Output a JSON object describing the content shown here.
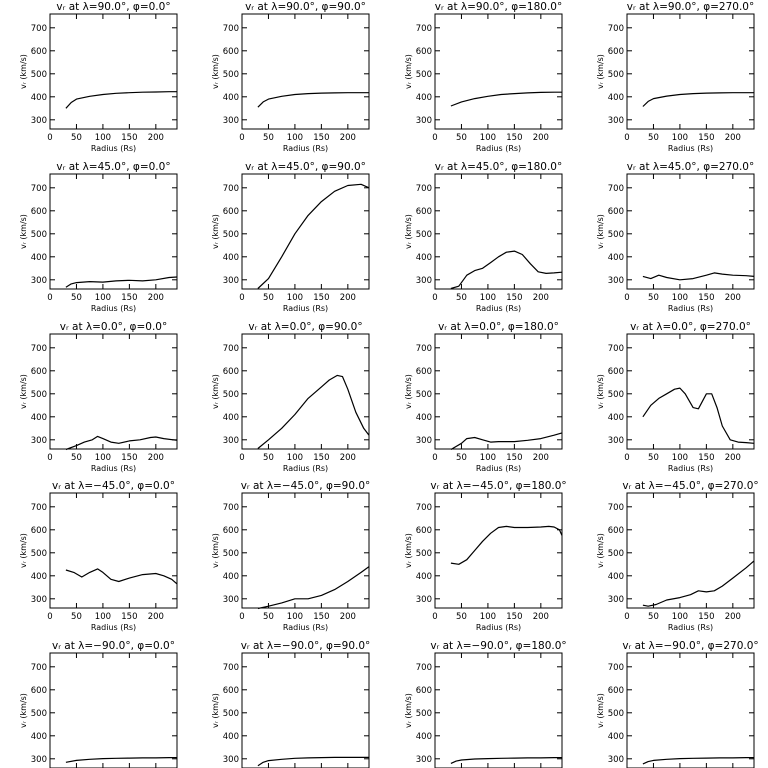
{
  "chart_data": [
    {
      "type": "line",
      "title": "vᵣ at λ=90.0°, φ=0.0°",
      "xlabel": "Radius (Rs)",
      "ylabel": "vᵣ (km/s)",
      "xlim": [
        0,
        240
      ],
      "ylim": [
        260,
        760
      ],
      "xticks": [
        0,
        50,
        100,
        150,
        200
      ],
      "yticks": [
        300,
        400,
        500,
        600,
        700
      ],
      "x": [
        30,
        40,
        50,
        75,
        100,
        125,
        150,
        175,
        200,
        225,
        240
      ],
      "values": [
        350,
        375,
        390,
        402,
        410,
        415,
        418,
        420,
        421,
        422,
        422
      ]
    },
    {
      "type": "line",
      "title": "vᵣ at λ=90.0°, φ=90.0°",
      "xlabel": "Radius (Rs)",
      "ylabel": "vᵣ (km/s)",
      "xlim": [
        0,
        240
      ],
      "ylim": [
        260,
        760
      ],
      "xticks": [
        0,
        50,
        100,
        150,
        200
      ],
      "yticks": [
        300,
        400,
        500,
        600,
        700
      ],
      "x": [
        30,
        40,
        50,
        75,
        100,
        125,
        150,
        175,
        200,
        225,
        240
      ],
      "values": [
        355,
        378,
        390,
        402,
        410,
        414,
        416,
        417,
        418,
        418,
        418
      ]
    },
    {
      "type": "line",
      "title": "vᵣ at λ=90.0°, φ=180.0°",
      "xlabel": "Radius (Rs)",
      "ylabel": "vᵣ (km/s)",
      "xlim": [
        0,
        240
      ],
      "ylim": [
        260,
        760
      ],
      "xticks": [
        0,
        50,
        100,
        150,
        200
      ],
      "yticks": [
        300,
        400,
        500,
        600,
        700
      ],
      "x": [
        30,
        50,
        75,
        100,
        125,
        150,
        175,
        200,
        225,
        240
      ],
      "values": [
        360,
        378,
        392,
        402,
        410,
        414,
        417,
        419,
        420,
        420
      ]
    },
    {
      "type": "line",
      "title": "vᵣ at λ=90.0°, φ=270.0°",
      "xlabel": "Radius (Rs)",
      "ylabel": "vᵣ (km/s)",
      "xlim": [
        0,
        240
      ],
      "ylim": [
        260,
        760
      ],
      "xticks": [
        0,
        50,
        100,
        150,
        200
      ],
      "yticks": [
        300,
        400,
        500,
        600,
        700
      ],
      "x": [
        30,
        40,
        50,
        75,
        100,
        125,
        150,
        175,
        200,
        225,
        240
      ],
      "values": [
        358,
        380,
        392,
        403,
        410,
        414,
        416,
        417,
        418,
        418,
        418
      ]
    },
    {
      "type": "line",
      "title": "vᵣ at λ=45.0°, φ=0.0°",
      "xlabel": "Radius (Rs)",
      "ylabel": "vᵣ (km/s)",
      "xlim": [
        0,
        240
      ],
      "ylim": [
        260,
        760
      ],
      "xticks": [
        0,
        50,
        100,
        150,
        200
      ],
      "yticks": [
        300,
        400,
        500,
        600,
        700
      ],
      "x": [
        30,
        40,
        50,
        75,
        100,
        125,
        150,
        175,
        200,
        225,
        240
      ],
      "values": [
        268,
        282,
        288,
        292,
        290,
        295,
        298,
        295,
        300,
        310,
        312
      ]
    },
    {
      "type": "line",
      "title": "vᵣ at λ=45.0°, φ=90.0°",
      "xlabel": "Radius (Rs)",
      "ylabel": "vᵣ (km/s)",
      "xlim": [
        0,
        240
      ],
      "ylim": [
        260,
        760
      ],
      "xticks": [
        0,
        50,
        100,
        150,
        200
      ],
      "yticks": [
        300,
        400,
        500,
        600,
        700
      ],
      "x": [
        30,
        50,
        75,
        100,
        125,
        150,
        175,
        200,
        225,
        240
      ],
      "values": [
        262,
        305,
        400,
        500,
        580,
        640,
        685,
        710,
        715,
        700
      ]
    },
    {
      "type": "line",
      "title": "vᵣ at λ=45.0°, φ=180.0°",
      "xlabel": "Radius (Rs)",
      "ylabel": "vᵣ (km/s)",
      "xlim": [
        0,
        240
      ],
      "ylim": [
        260,
        760
      ],
      "xticks": [
        0,
        50,
        100,
        150,
        200
      ],
      "yticks": [
        300,
        400,
        500,
        600,
        700
      ],
      "x": [
        30,
        45,
        60,
        75,
        90,
        105,
        120,
        135,
        150,
        165,
        180,
        195,
        210,
        225,
        240
      ],
      "values": [
        262,
        272,
        320,
        340,
        350,
        375,
        400,
        420,
        425,
        410,
        370,
        335,
        328,
        330,
        333
      ]
    },
    {
      "type": "line",
      "title": "vᵣ at λ=45.0°, φ=270.0°",
      "xlabel": "Radius (Rs)",
      "ylabel": "vᵣ (km/s)",
      "xlim": [
        0,
        240
      ],
      "ylim": [
        260,
        760
      ],
      "xticks": [
        0,
        50,
        100,
        150,
        200
      ],
      "yticks": [
        300,
        400,
        500,
        600,
        700
      ],
      "x": [
        30,
        45,
        60,
        75,
        100,
        125,
        150,
        165,
        180,
        200,
        225,
        240
      ],
      "values": [
        315,
        305,
        320,
        310,
        300,
        305,
        320,
        330,
        325,
        320,
        318,
        315
      ]
    },
    {
      "type": "line",
      "title": "vᵣ at λ=0.0°, φ=0.0°",
      "xlabel": "Radius (Rs)",
      "ylabel": "vᵣ (km/s)",
      "xlim": [
        0,
        240
      ],
      "ylim": [
        260,
        760
      ],
      "xticks": [
        0,
        50,
        100,
        150,
        200
      ],
      "yticks": [
        300,
        400,
        500,
        600,
        700
      ],
      "x": [
        30,
        50,
        65,
        80,
        90,
        100,
        115,
        130,
        150,
        170,
        190,
        200,
        215,
        240
      ],
      "values": [
        258,
        275,
        290,
        300,
        315,
        305,
        290,
        285,
        295,
        300,
        310,
        312,
        305,
        298
      ]
    },
    {
      "type": "line",
      "title": "vᵣ at λ=0.0°, φ=90.0°",
      "xlabel": "Radius (Rs)",
      "ylabel": "vᵣ (km/s)",
      "xlim": [
        0,
        240
      ],
      "ylim": [
        260,
        760
      ],
      "xticks": [
        0,
        50,
        100,
        150,
        200
      ],
      "yticks": [
        300,
        400,
        500,
        600,
        700
      ],
      "x": [
        30,
        50,
        75,
        100,
        125,
        150,
        165,
        180,
        190,
        200,
        215,
        230,
        240
      ],
      "values": [
        262,
        300,
        350,
        410,
        480,
        530,
        560,
        580,
        575,
        520,
        420,
        350,
        320
      ]
    },
    {
      "type": "line",
      "title": "vᵣ at λ=0.0°, φ=180.0°",
      "xlabel": "Radius (Rs)",
      "ylabel": "vᵣ (km/s)",
      "xlim": [
        0,
        240
      ],
      "ylim": [
        260,
        760
      ],
      "xticks": [
        0,
        50,
        100,
        150,
        200
      ],
      "yticks": [
        300,
        400,
        500,
        600,
        700
      ],
      "x": [
        30,
        50,
        60,
        75,
        90,
        105,
        120,
        150,
        175,
        200,
        225,
        240
      ],
      "values": [
        258,
        285,
        305,
        310,
        300,
        290,
        292,
        292,
        298,
        305,
        320,
        330
      ]
    },
    {
      "type": "line",
      "title": "vᵣ at λ=0.0°, φ=270.0°",
      "xlabel": "Radius (Rs)",
      "ylabel": "vᵣ (km/s)",
      "xlim": [
        0,
        240
      ],
      "ylim": [
        260,
        760
      ],
      "xticks": [
        0,
        50,
        100,
        150,
        200
      ],
      "yticks": [
        300,
        400,
        500,
        600,
        700
      ],
      "x": [
        30,
        45,
        60,
        75,
        90,
        100,
        110,
        125,
        135,
        150,
        160,
        170,
        180,
        195,
        210,
        225,
        240
      ],
      "values": [
        400,
        450,
        480,
        500,
        520,
        525,
        500,
        440,
        435,
        500,
        500,
        440,
        360,
        300,
        290,
        288,
        285
      ]
    },
    {
      "type": "line",
      "title": "vᵣ at λ=−45.0°, φ=0.0°",
      "xlabel": "Radius (Rs)",
      "ylabel": "vᵣ (km/s)",
      "xlim": [
        0,
        240
      ],
      "ylim": [
        260,
        760
      ],
      "xticks": [
        0,
        50,
        100,
        150,
        200
      ],
      "yticks": [
        300,
        400,
        500,
        600,
        700
      ],
      "x": [
        30,
        45,
        60,
        75,
        90,
        100,
        115,
        130,
        150,
        175,
        200,
        215,
        230,
        240
      ],
      "values": [
        425,
        415,
        395,
        415,
        430,
        415,
        385,
        375,
        390,
        405,
        410,
        400,
        385,
        365
      ]
    },
    {
      "type": "line",
      "title": "vᵣ at λ=−45.0°, φ=90.0°",
      "xlabel": "Radius (Rs)",
      "ylabel": "vᵣ (km/s)",
      "xlim": [
        0,
        240
      ],
      "ylim": [
        260,
        760
      ],
      "xticks": [
        0,
        50,
        100,
        150,
        200
      ],
      "yticks": [
        300,
        400,
        500,
        600,
        700
      ],
      "x": [
        30,
        50,
        75,
        100,
        125,
        150,
        175,
        200,
        225,
        240
      ],
      "values": [
        258,
        268,
        282,
        300,
        300,
        315,
        340,
        375,
        415,
        440
      ]
    },
    {
      "type": "line",
      "title": "vᵣ at λ=−45.0°, φ=180.0°",
      "xlabel": "Radius (Rs)",
      "ylabel": "vᵣ (km/s)",
      "xlim": [
        0,
        240
      ],
      "ylim": [
        260,
        760
      ],
      "xticks": [
        0,
        50,
        100,
        150,
        200
      ],
      "yticks": [
        300,
        400,
        500,
        600,
        700
      ],
      "x": [
        30,
        45,
        60,
        75,
        90,
        105,
        120,
        135,
        150,
        175,
        200,
        215,
        225,
        235,
        240
      ],
      "values": [
        455,
        450,
        470,
        510,
        550,
        585,
        610,
        615,
        610,
        610,
        612,
        615,
        612,
        600,
        575
      ]
    },
    {
      "type": "line",
      "title": "vᵣ at λ=−45.0°, φ=270.0°",
      "xlabel": "Radius (Rs)",
      "ylabel": "vᵣ (km/s)",
      "xlim": [
        0,
        240
      ],
      "ylim": [
        260,
        760
      ],
      "xticks": [
        0,
        50,
        100,
        150,
        200
      ],
      "yticks": [
        300,
        400,
        500,
        600,
        700
      ],
      "x": [
        30,
        40,
        55,
        75,
        100,
        120,
        135,
        150,
        165,
        180,
        200,
        225,
        240
      ],
      "values": [
        272,
        268,
        275,
        295,
        305,
        318,
        335,
        330,
        335,
        355,
        390,
        435,
        465
      ]
    },
    {
      "type": "line",
      "title": "vᵣ at λ=−90.0°, φ=0.0°",
      "xlabel": "Radius (Rs)",
      "ylabel": "vᵣ (km/s)",
      "xlim": [
        0,
        240
      ],
      "ylim": [
        260,
        760
      ],
      "xticks": [
        0,
        50,
        100,
        150,
        200
      ],
      "yticks": [
        300,
        400,
        500,
        600,
        700
      ],
      "x": [
        30,
        50,
        75,
        100,
        125,
        150,
        175,
        200,
        225,
        240
      ],
      "values": [
        285,
        293,
        298,
        301,
        302,
        303,
        304,
        304,
        305,
        305
      ]
    },
    {
      "type": "line",
      "title": "vᵣ at λ=−90.0°, φ=90.0°",
      "xlabel": "Radius (Rs)",
      "ylabel": "vᵣ (km/s)",
      "xlim": [
        0,
        240
      ],
      "ylim": [
        260,
        760
      ],
      "xticks": [
        0,
        50,
        100,
        150,
        200
      ],
      "yticks": [
        300,
        400,
        500,
        600,
        700
      ],
      "x": [
        30,
        40,
        50,
        75,
        100,
        125,
        150,
        175,
        200,
        225,
        240
      ],
      "values": [
        270,
        285,
        292,
        298,
        302,
        304,
        305,
        306,
        306,
        306,
        306
      ]
    },
    {
      "type": "line",
      "title": "vᵣ at λ=−90.0°, φ=180.0°",
      "xlabel": "Radius (Rs)",
      "ylabel": "vᵣ (km/s)",
      "xlim": [
        0,
        240
      ],
      "ylim": [
        260,
        760
      ],
      "xticks": [
        0,
        50,
        100,
        150,
        200
      ],
      "yticks": [
        300,
        400,
        500,
        600,
        700
      ],
      "x": [
        30,
        40,
        50,
        75,
        100,
        125,
        150,
        175,
        200,
        225,
        240
      ],
      "values": [
        280,
        290,
        295,
        299,
        301,
        302,
        303,
        304,
        304,
        305,
        305
      ]
    },
    {
      "type": "line",
      "title": "vᵣ at λ=−90.0°, φ=270.0°",
      "xlabel": "Radius (Rs)",
      "ylabel": "vᵣ (km/s)",
      "xlim": [
        0,
        240
      ],
      "ylim": [
        260,
        760
      ],
      "xticks": [
        0,
        50,
        100,
        150,
        200
      ],
      "yticks": [
        300,
        400,
        500,
        600,
        700
      ],
      "x": [
        30,
        40,
        50,
        75,
        100,
        125,
        150,
        175,
        200,
        225,
        240
      ],
      "values": [
        278,
        288,
        293,
        298,
        301,
        302,
        303,
        304,
        304,
        305,
        305
      ]
    }
  ]
}
